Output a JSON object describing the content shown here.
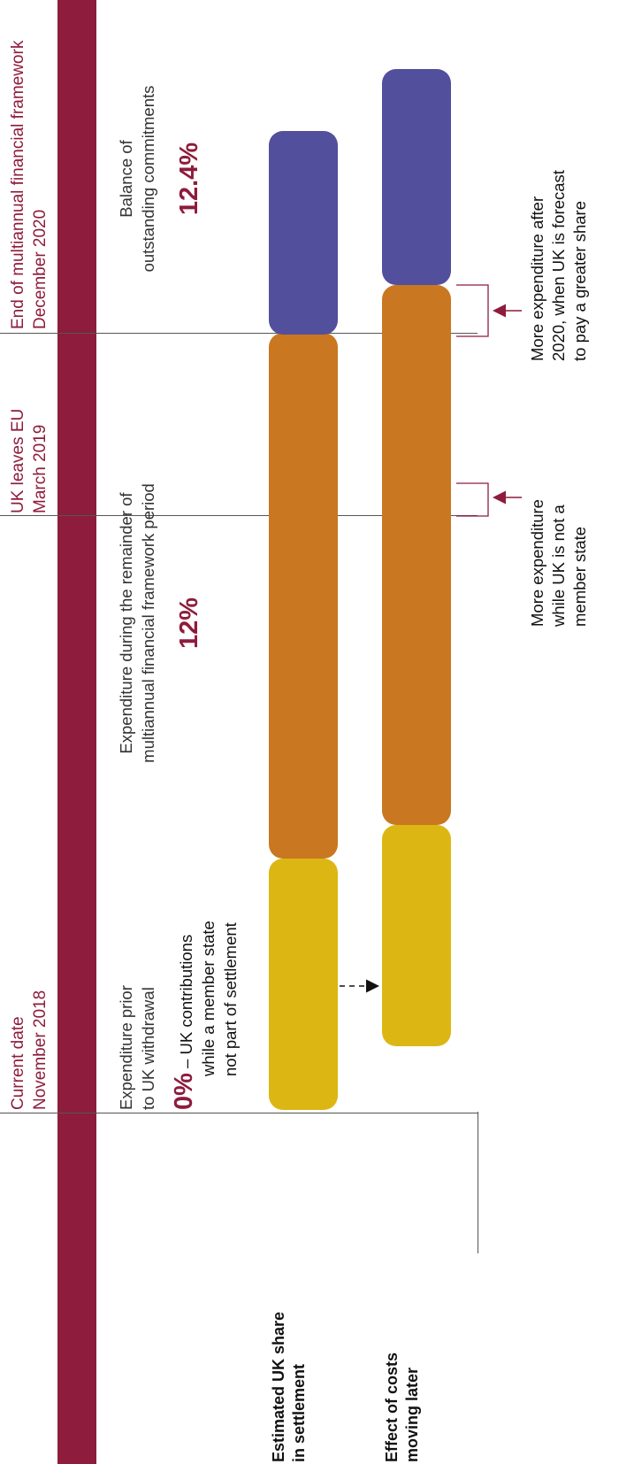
{
  "dates": {
    "current": {
      "line1": "Current date",
      "line2": "November 2018"
    },
    "leave": {
      "line1": "UK leaves EU",
      "line2": "March 2019"
    },
    "end": {
      "line1": "End of multiannual financial framework",
      "line2": "December 2020"
    }
  },
  "periods": {
    "prior": {
      "line1": "Expenditure prior",
      "line2": "to UK withdrawal",
      "pct": "0%",
      "pct_note_1": " – UK contributions",
      "pct_note_2": "while a member state",
      "pct_note_3": "not part of settlement"
    },
    "remainder": {
      "line1": "Expenditure during the remainder of",
      "line2": "multiannual financial framework period",
      "pct": "12%"
    },
    "balance": {
      "line1": "Balance of",
      "line2": "outstanding commitments",
      "pct": "12.4%"
    }
  },
  "rows": {
    "share": {
      "line1": "Estimated UK share",
      "line2": "in settlement"
    },
    "effect": {
      "line1": "Effect of costs",
      "line2": "moving later"
    }
  },
  "notes": {
    "not_member": {
      "line1": "More expenditure",
      "line2": "while UK is not a",
      "line3": "member state"
    },
    "after_2020": {
      "line1": "More expenditure after",
      "line2": "2020, when UK is forecast",
      "line3": "to pay a greater share"
    }
  },
  "colors": {
    "maroon": "#8e1c3c",
    "yellow": "#dcb713",
    "orange": "#c97720",
    "purple": "#524f9c"
  }
}
